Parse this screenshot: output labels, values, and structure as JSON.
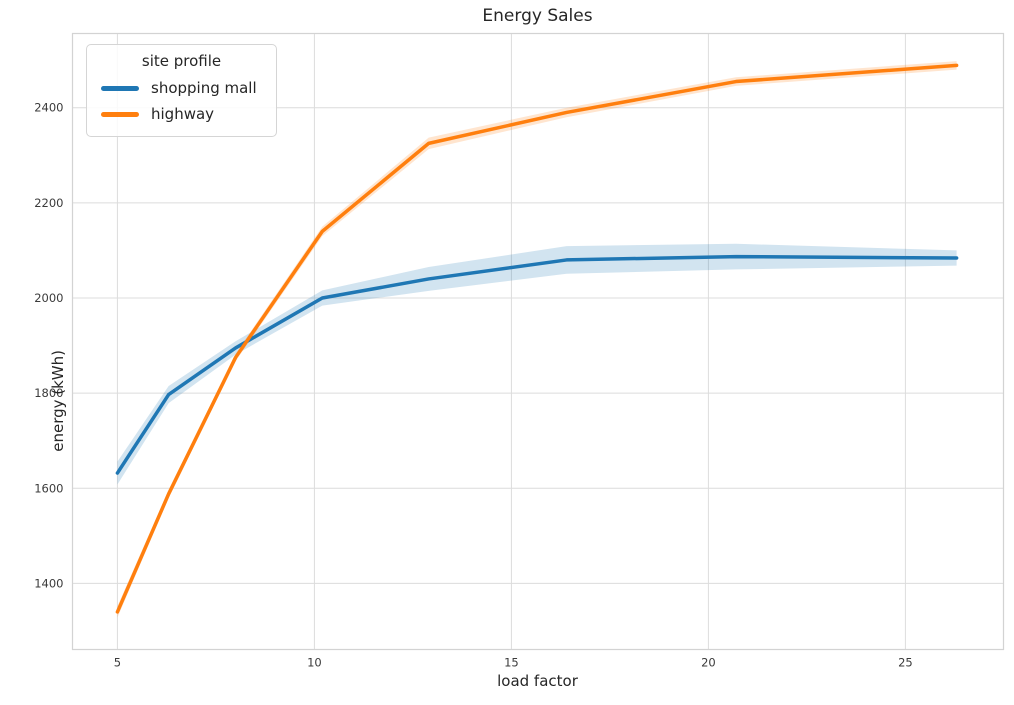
{
  "figure": {
    "title": "Energy Sales",
    "xlabel": "load factor",
    "ylabel": "energy (kWh)"
  },
  "legend": {
    "title": "site profile",
    "entries": [
      {
        "label": "shopping mall",
        "color": "#1f77b4"
      },
      {
        "label": "highway",
        "color": "#ff7f0e"
      }
    ]
  },
  "chart_data": {
    "type": "line",
    "title": "Energy Sales",
    "xlabel": "load factor",
    "ylabel": "energy (kWh)",
    "x": [
      5,
      6.3,
      8,
      10.2,
      12.9,
      16.4,
      20.7,
      26.3
    ],
    "series": [
      {
        "name": "shopping mall",
        "color": "#1f77b4",
        "values": [
          1632,
          1797,
          1895,
          2000,
          2040,
          2080,
          2087,
          2084
        ],
        "band_halfwidth": [
          24,
          18,
          14,
          16,
          25,
          29,
          27,
          16
        ]
      },
      {
        "name": "highway",
        "color": "#ff7f0e",
        "values": [
          1340,
          1588,
          1875,
          2140,
          2325,
          2390,
          2455,
          2489
        ],
        "band_halfwidth": [
          12,
          9,
          8,
          10,
          12,
          10,
          9,
          9
        ]
      }
    ],
    "x_ticks": [
      5,
      10,
      15,
      20,
      25
    ],
    "y_ticks": [
      1400,
      1600,
      1800,
      2000,
      2200,
      2400
    ],
    "xlim": [
      3.86,
      27.49
    ],
    "ylim": [
      1261,
      2556
    ],
    "grid": true,
    "legend_position": "upper left",
    "band_alpha": 0.2,
    "grid_color": "#dcdcdc",
    "frame_color": "#d3d3d3",
    "tick_label_color": "#3b3b3b",
    "line_width": 3.5
  }
}
